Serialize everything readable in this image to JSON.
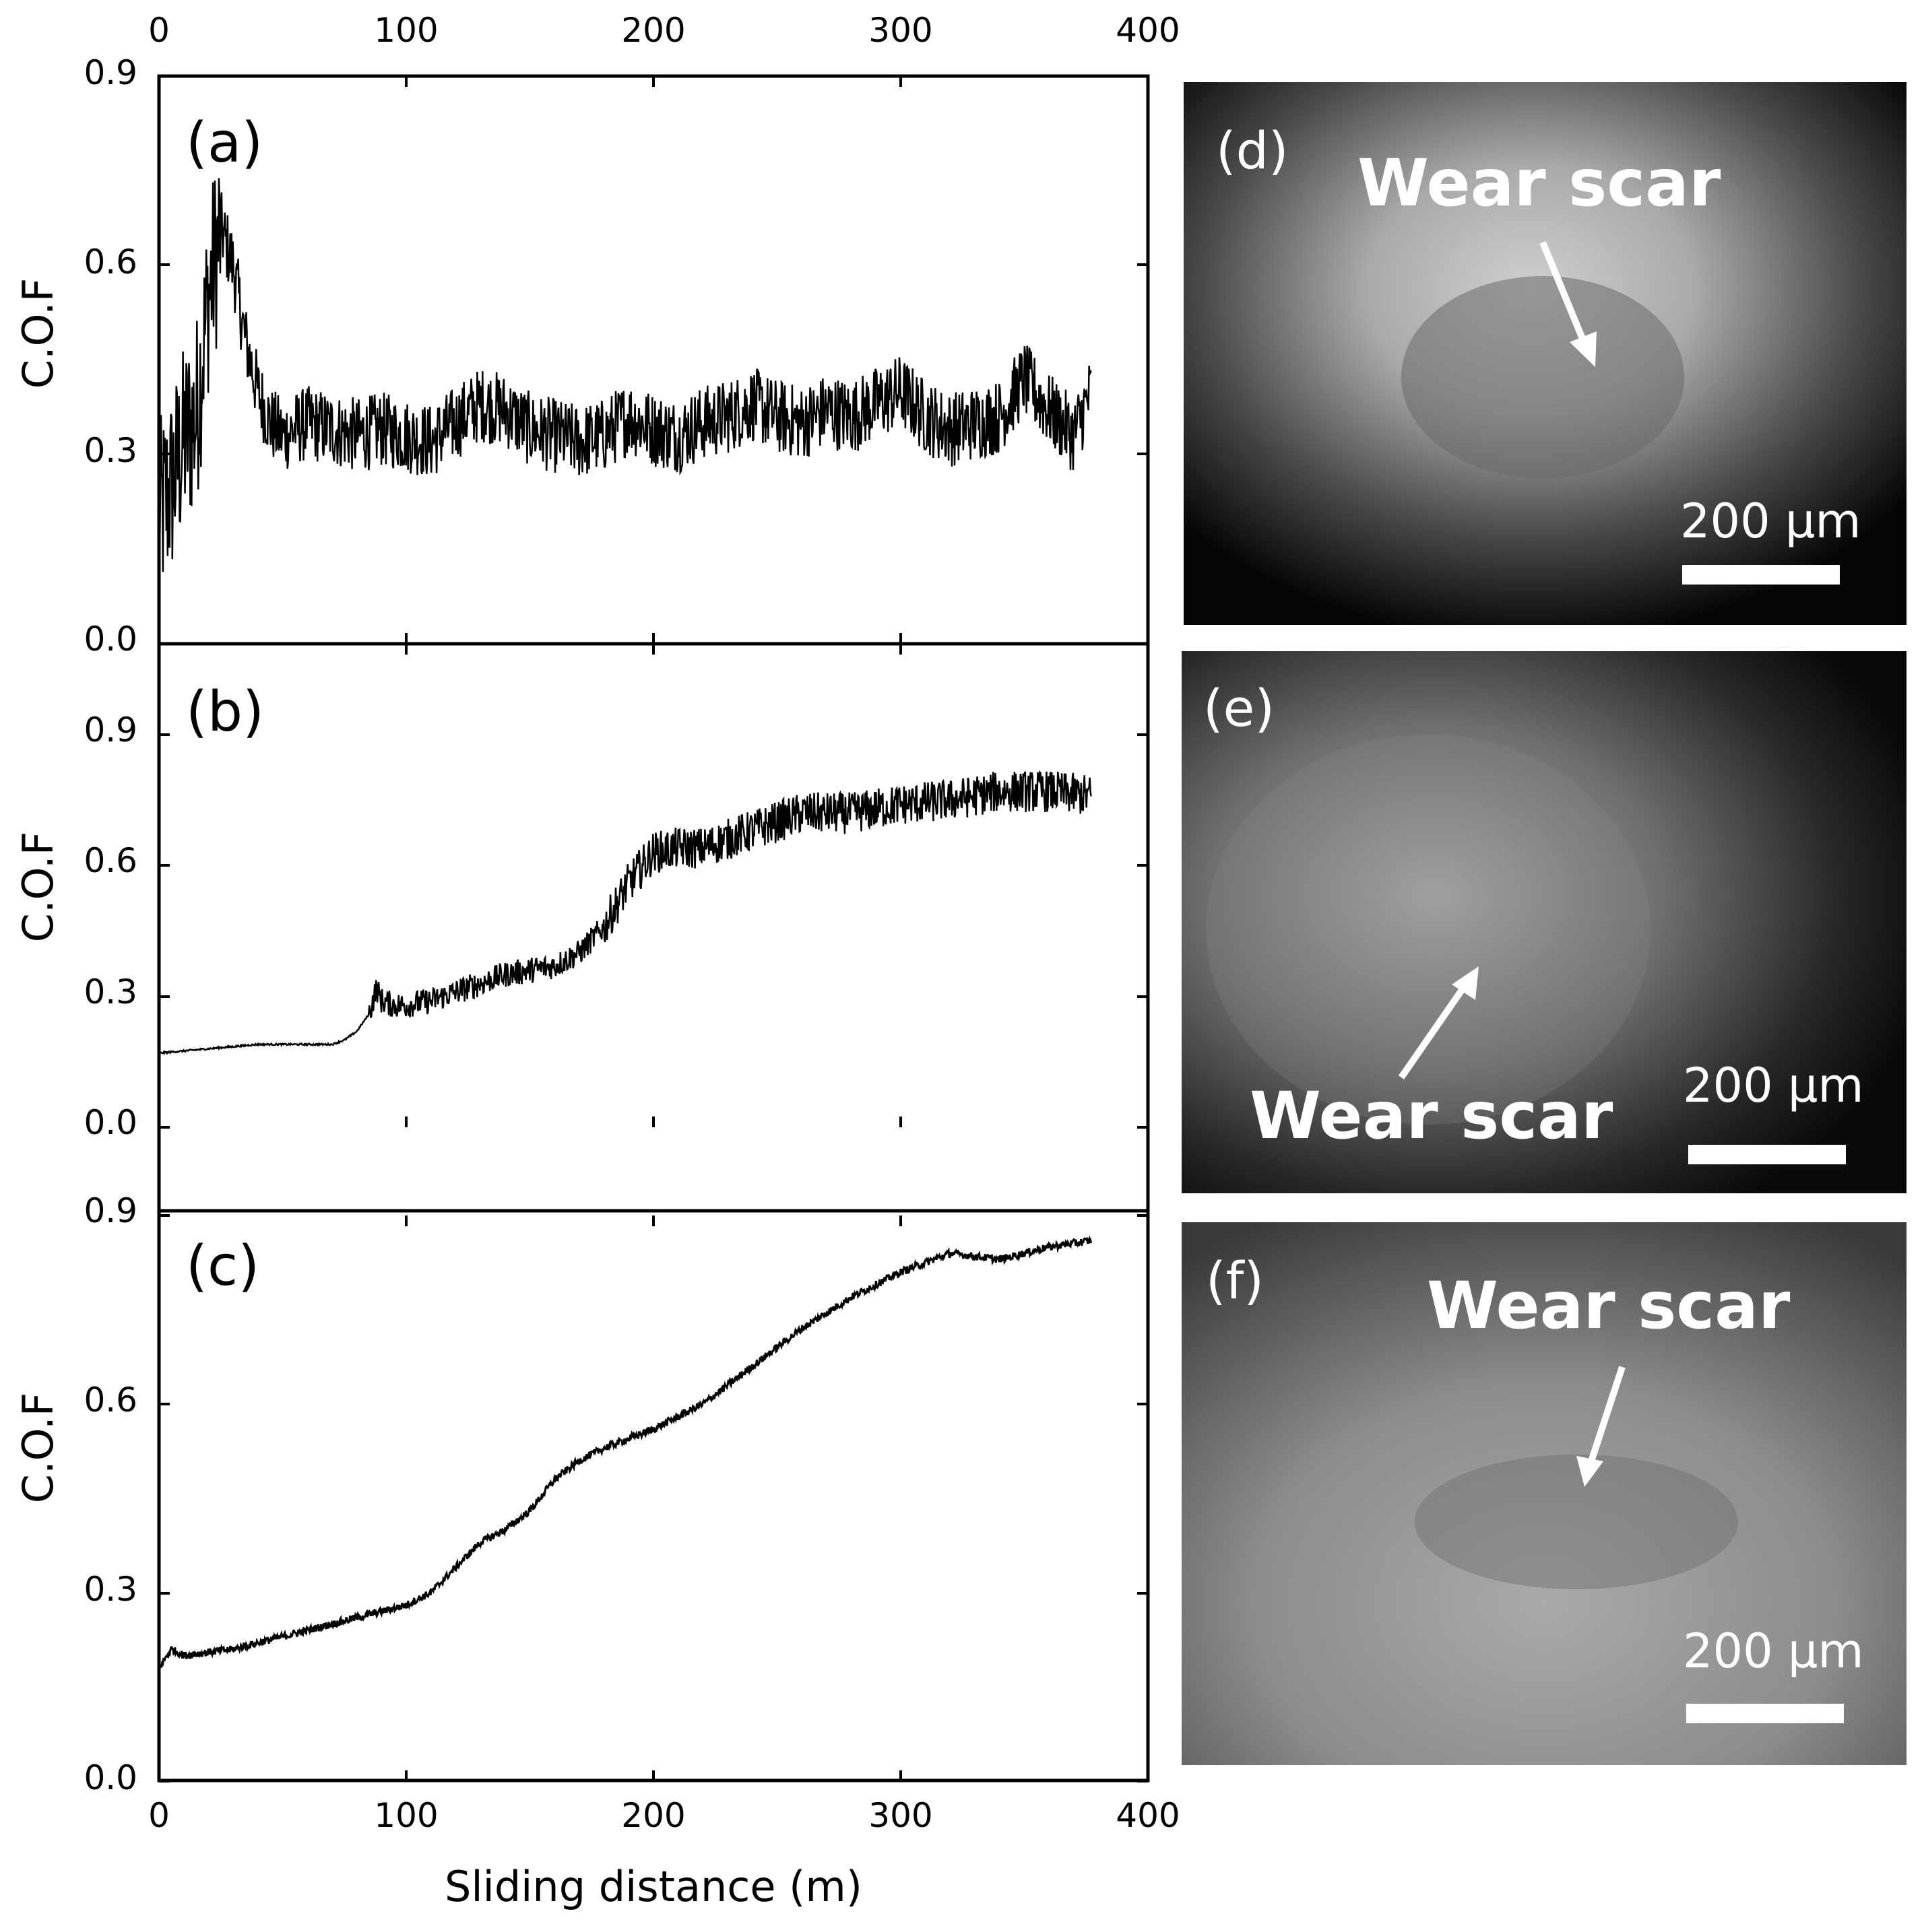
{
  "figure": {
    "xlabel": "Sliding distance (m)",
    "ylabel": "C.O.F",
    "top_axis_ticks": [
      "0",
      "100",
      "200",
      "300",
      "400"
    ],
    "bottom_axis_ticks": [
      "0",
      "100",
      "200",
      "300",
      "400"
    ]
  },
  "chart_data": [
    {
      "type": "line",
      "panel": "(a)",
      "xlabel": "",
      "ylabel": "C.O.F",
      "xlim": [
        0,
        400
      ],
      "ylim": [
        0,
        0.9
      ],
      "y_ticks": [
        "0.0",
        "0.3",
        "0.6",
        "0.9"
      ],
      "grid": false,
      "noise": 0.06,
      "x": [
        0,
        5,
        10,
        15,
        20,
        25,
        30,
        35,
        40,
        45,
        50,
        60,
        70,
        80,
        90,
        100,
        110,
        120,
        130,
        140,
        150,
        160,
        170,
        180,
        190,
        200,
        210,
        220,
        230,
        240,
        250,
        260,
        270,
        280,
        290,
        300,
        310,
        320,
        330,
        340,
        350,
        360,
        370,
        377
      ],
      "y": [
        0.2,
        0.25,
        0.32,
        0.36,
        0.55,
        0.66,
        0.6,
        0.48,
        0.4,
        0.35,
        0.33,
        0.35,
        0.34,
        0.33,
        0.34,
        0.33,
        0.32,
        0.35,
        0.38,
        0.37,
        0.34,
        0.33,
        0.32,
        0.33,
        0.36,
        0.34,
        0.33,
        0.35,
        0.36,
        0.38,
        0.36,
        0.35,
        0.37,
        0.36,
        0.38,
        0.4,
        0.36,
        0.34,
        0.35,
        0.36,
        0.42,
        0.37,
        0.33,
        0.4
      ]
    },
    {
      "type": "line",
      "panel": "(b)",
      "xlabel": "",
      "ylabel": "C.O.F",
      "xlim": [
        0,
        400
      ],
      "ylim": [
        0,
        0.9
      ],
      "y_ticks": [
        "0.0",
        "0.3",
        "0.6",
        "0.9"
      ],
      "grid": false,
      "noise": 0.03,
      "x": [
        0,
        20,
        40,
        60,
        70,
        75,
        80,
        85,
        88,
        90,
        95,
        100,
        110,
        120,
        130,
        140,
        150,
        160,
        170,
        180,
        190,
        200,
        210,
        220,
        240,
        260,
        280,
        300,
        320,
        340,
        360,
        377
      ],
      "y": [
        0.17,
        0.18,
        0.19,
        0.19,
        0.19,
        0.2,
        0.22,
        0.26,
        0.32,
        0.29,
        0.28,
        0.28,
        0.29,
        0.31,
        0.33,
        0.35,
        0.36,
        0.37,
        0.4,
        0.46,
        0.56,
        0.63,
        0.64,
        0.64,
        0.68,
        0.72,
        0.72,
        0.74,
        0.75,
        0.77,
        0.77,
        0.76
      ]
    },
    {
      "type": "line",
      "panel": "(c)",
      "xlabel": "Sliding distance (m)",
      "ylabel": "C.O.F",
      "xlim": [
        0,
        400
      ],
      "ylim": [
        0,
        0.9
      ],
      "y_ticks": [
        "0.0",
        "0.3",
        "0.6",
        "0.9"
      ],
      "grid": false,
      "noise": 0.006,
      "x": [
        0,
        5,
        10,
        30,
        60,
        80,
        100,
        110,
        120,
        130,
        140,
        150,
        160,
        170,
        180,
        200,
        220,
        240,
        260,
        280,
        300,
        320,
        340,
        360,
        377
      ],
      "y": [
        0.18,
        0.21,
        0.2,
        0.21,
        0.24,
        0.26,
        0.28,
        0.3,
        0.34,
        0.38,
        0.4,
        0.43,
        0.48,
        0.51,
        0.53,
        0.56,
        0.6,
        0.66,
        0.72,
        0.77,
        0.81,
        0.84,
        0.83,
        0.85,
        0.86
      ]
    }
  ],
  "micrographs": [
    {
      "label": "(d)",
      "annotation": "Wear scar",
      "scale_bar": "200 μm"
    },
    {
      "label": "(e)",
      "annotation": "Wear scar",
      "scale_bar": "200 μm"
    },
    {
      "label": "(f)",
      "annotation": "Wear scar",
      "scale_bar": "200 μm"
    }
  ],
  "colors": {
    "line": "#000000",
    "axis": "#000000",
    "annotation": "#ffffff"
  }
}
